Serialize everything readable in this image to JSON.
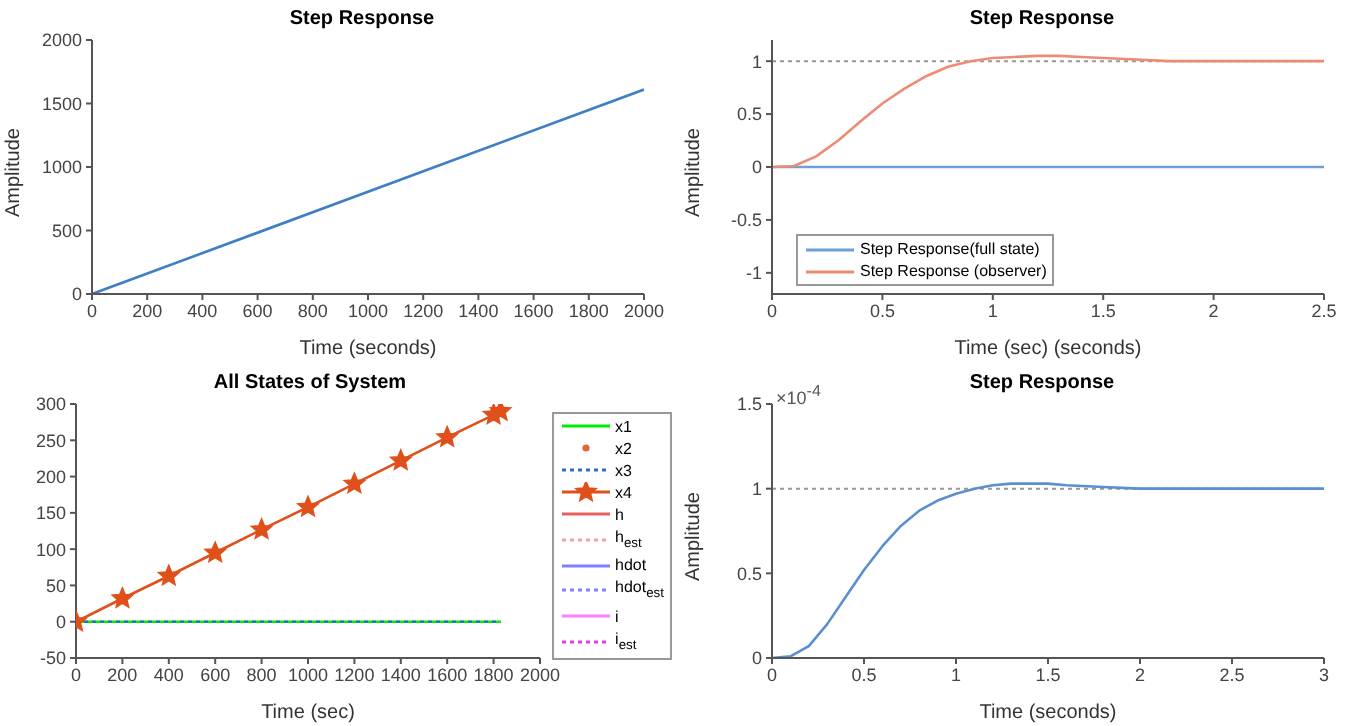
{
  "chart_data": [
    {
      "type": "line",
      "title": "Step Response",
      "xlabel": "Time (seconds)",
      "ylabel": "Amplitude",
      "xlim": [
        0,
        2000
      ],
      "xticks": [
        0,
        200,
        400,
        600,
        800,
        1000,
        1200,
        1400,
        1600,
        1800,
        2000
      ],
      "ylim": [
        0,
        2000
      ],
      "yticks": [
        0,
        500,
        1000,
        1500,
        2000
      ],
      "grid": false,
      "legend": false,
      "series": [
        {
          "color": "#3f7fc4",
          "x": [
            0,
            2000
          ],
          "values": [
            0,
            1610
          ]
        }
      ]
    },
    {
      "type": "line",
      "title": "Step Response",
      "xlabel": "Time (sec) (seconds)",
      "ylabel": "Amplitude",
      "xlim": [
        0,
        2.5
      ],
      "xticks": [
        0,
        0.5,
        1,
        1.5,
        2,
        2.5
      ],
      "ylim": [
        -1.2,
        1.2
      ],
      "yticks": [
        -1,
        -0.5,
        0,
        0.5,
        1
      ],
      "grid": false,
      "legend": "bottom left",
      "ref_lines": [
        {
          "axis": "y",
          "value": 1,
          "color": "#999999",
          "line_style": "dotted"
        }
      ],
      "series": [
        {
          "name": "Step Response(full state)",
          "color": "#6f9fd8",
          "x": [
            0,
            2.5
          ],
          "values": [
            0,
            0
          ]
        },
        {
          "name": "Step Response (observer)",
          "color": "#ec8c74",
          "x": [
            0,
            0.1,
            0.2,
            0.3,
            0.4,
            0.5,
            0.6,
            0.7,
            0.8,
            0.9,
            1.0,
            1.1,
            1.2,
            1.3,
            1.4,
            1.6,
            1.8,
            2.0,
            2.2,
            2.5
          ],
          "values": [
            0,
            0.01,
            0.1,
            0.25,
            0.43,
            0.6,
            0.74,
            0.86,
            0.95,
            1.0,
            1.03,
            1.04,
            1.05,
            1.05,
            1.04,
            1.02,
            1.0,
            1.0,
            1.0,
            1.0
          ]
        }
      ]
    },
    {
      "type": "line",
      "title": "All States of System",
      "xlabel": "Time (sec)",
      "xlim": [
        0,
        2000
      ],
      "xticks": [
        0,
        200,
        400,
        600,
        800,
        1000,
        1200,
        1400,
        1600,
        1800,
        2000
      ],
      "ylim": [
        -50,
        300
      ],
      "yticks": [
        -50,
        0,
        50,
        100,
        150,
        200,
        250,
        300
      ],
      "grid": false,
      "legend": "right",
      "series": [
        {
          "name": "x1",
          "color": "#00ee00",
          "x": [
            0,
            1830
          ],
          "values": [
            0,
            0
          ]
        },
        {
          "name": "x2",
          "color": "#e8603c",
          "marker": "circle",
          "line_style": "none"
        },
        {
          "name": "x3",
          "color": "#2e6fb8",
          "line_style": "dotted",
          "x": [
            0,
            1830
          ],
          "values": [
            0,
            0
          ]
        },
        {
          "name": "x4",
          "color": "#e0501a",
          "marker": "star",
          "x": [
            0,
            200,
            400,
            600,
            800,
            1000,
            1200,
            1400,
            1600,
            1800,
            1830
          ],
          "values": [
            0,
            32,
            63,
            95,
            127,
            158,
            190,
            222,
            254,
            285,
            290
          ]
        },
        {
          "name": "h",
          "color": "#e86060"
        },
        {
          "name": "h$_{est}$",
          "color": "#f0a0a0",
          "line_style": "dotted"
        },
        {
          "name": "hdot",
          "color": "#8080ff"
        },
        {
          "name": "hdot$_{est}$",
          "color": "#8080ff",
          "line_style": "dotted"
        },
        {
          "name": "i",
          "color": "#ff80ff"
        },
        {
          "name": "i$_{est}$",
          "color": "#e040e0",
          "line_style": "dotted"
        }
      ]
    },
    {
      "type": "line",
      "title": "Step Response",
      "xlabel": "Time (seconds)",
      "ylabel": "Amplitude",
      "xlim": [
        0,
        3
      ],
      "xticks": [
        0,
        0.5,
        1,
        1.5,
        2,
        2.5,
        3
      ],
      "ylim": [
        0,
        1.5
      ],
      "yticks": [
        0,
        0.5,
        1,
        1.5
      ],
      "grid": false,
      "legend": false,
      "annotations": [
        "×10$^{-4}$"
      ],
      "ref_lines": [
        {
          "axis": "y",
          "value": 1,
          "color": "#999999",
          "line_style": "dotted"
        }
      ],
      "series": [
        {
          "color": "#5b8fd0",
          "x": [
            0,
            0.1,
            0.2,
            0.3,
            0.4,
            0.5,
            0.6,
            0.7,
            0.8,
            0.9,
            1.0,
            1.1,
            1.2,
            1.3,
            1.4,
            1.5,
            1.6,
            1.8,
            2.0,
            2.5,
            3
          ],
          "values": [
            0,
            0.01,
            0.07,
            0.2,
            0.36,
            0.52,
            0.66,
            0.78,
            0.87,
            0.93,
            0.97,
            1.0,
            1.02,
            1.03,
            1.03,
            1.03,
            1.02,
            1.01,
            1.0,
            1.0,
            1.0
          ]
        }
      ]
    }
  ]
}
